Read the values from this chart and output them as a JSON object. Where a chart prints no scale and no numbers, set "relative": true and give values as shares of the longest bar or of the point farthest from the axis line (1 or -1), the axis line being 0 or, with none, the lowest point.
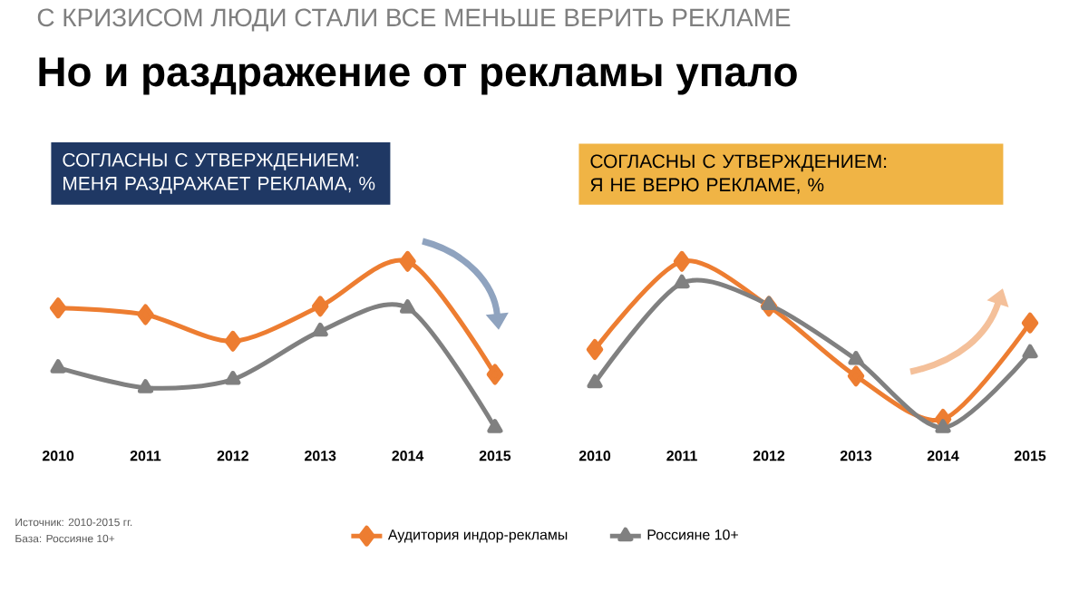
{
  "chart_data": [
    {
      "type": "line",
      "title": "СОГЛАСНЫ С УТВЕРЖДЕНИЕМ:\nМЕНЯ РАЗДРАЖАЕТ РЕКЛАМА, %",
      "relative": true,
      "legend": "bottom",
      "categories": [
        "2010",
        "2011",
        "2012",
        "2013",
        "2014",
        "2015"
      ],
      "series": [
        {
          "name": "Аудитория индор-рекламы",
          "color": "#ed7d31",
          "marker": "diamond",
          "values": [
            0.72,
            0.68,
            0.52,
            0.73,
            1,
            0.32
          ]
        },
        {
          "name": "Россияне 10+",
          "color": "#808080",
          "marker": "triangle",
          "values": [
            0.36,
            0.24,
            0.29,
            0.58,
            0.72,
            0
          ]
        }
      ],
      "annotations": [
        "С КРИЗИСОМ ЛЮДИ СТАЛИ ВСЕ МЕНЬШЕ ВЕРИТЬ РЕКЛАМЕ",
        "Но и раздражение от рекламы упало",
        "Источник: 2010-2015 гг.",
        "База: Россияне 10+"
      ]
    },
    {
      "type": "line",
      "title": "СОГЛАСНЫ С УТВЕРЖДЕНИЕМ:\nЯ НЕ ВЕРЮ РЕКЛАМЕ, %",
      "relative": true,
      "categories": [
        "2010",
        "2011",
        "2012",
        "2013",
        "2014",
        "2015"
      ],
      "series": [
        {
          "color": "#ed7d31",
          "marker": "diamond",
          "values": [
            0.47,
            1,
            0.73,
            0.31,
            0.05,
            0.63
          ]
        },
        {
          "color": "#808080",
          "marker": "triangle",
          "values": [
            0.27,
            0.87,
            0.74,
            0.41,
            0,
            0.45
          ]
        }
      ]
    }
  ]
}
